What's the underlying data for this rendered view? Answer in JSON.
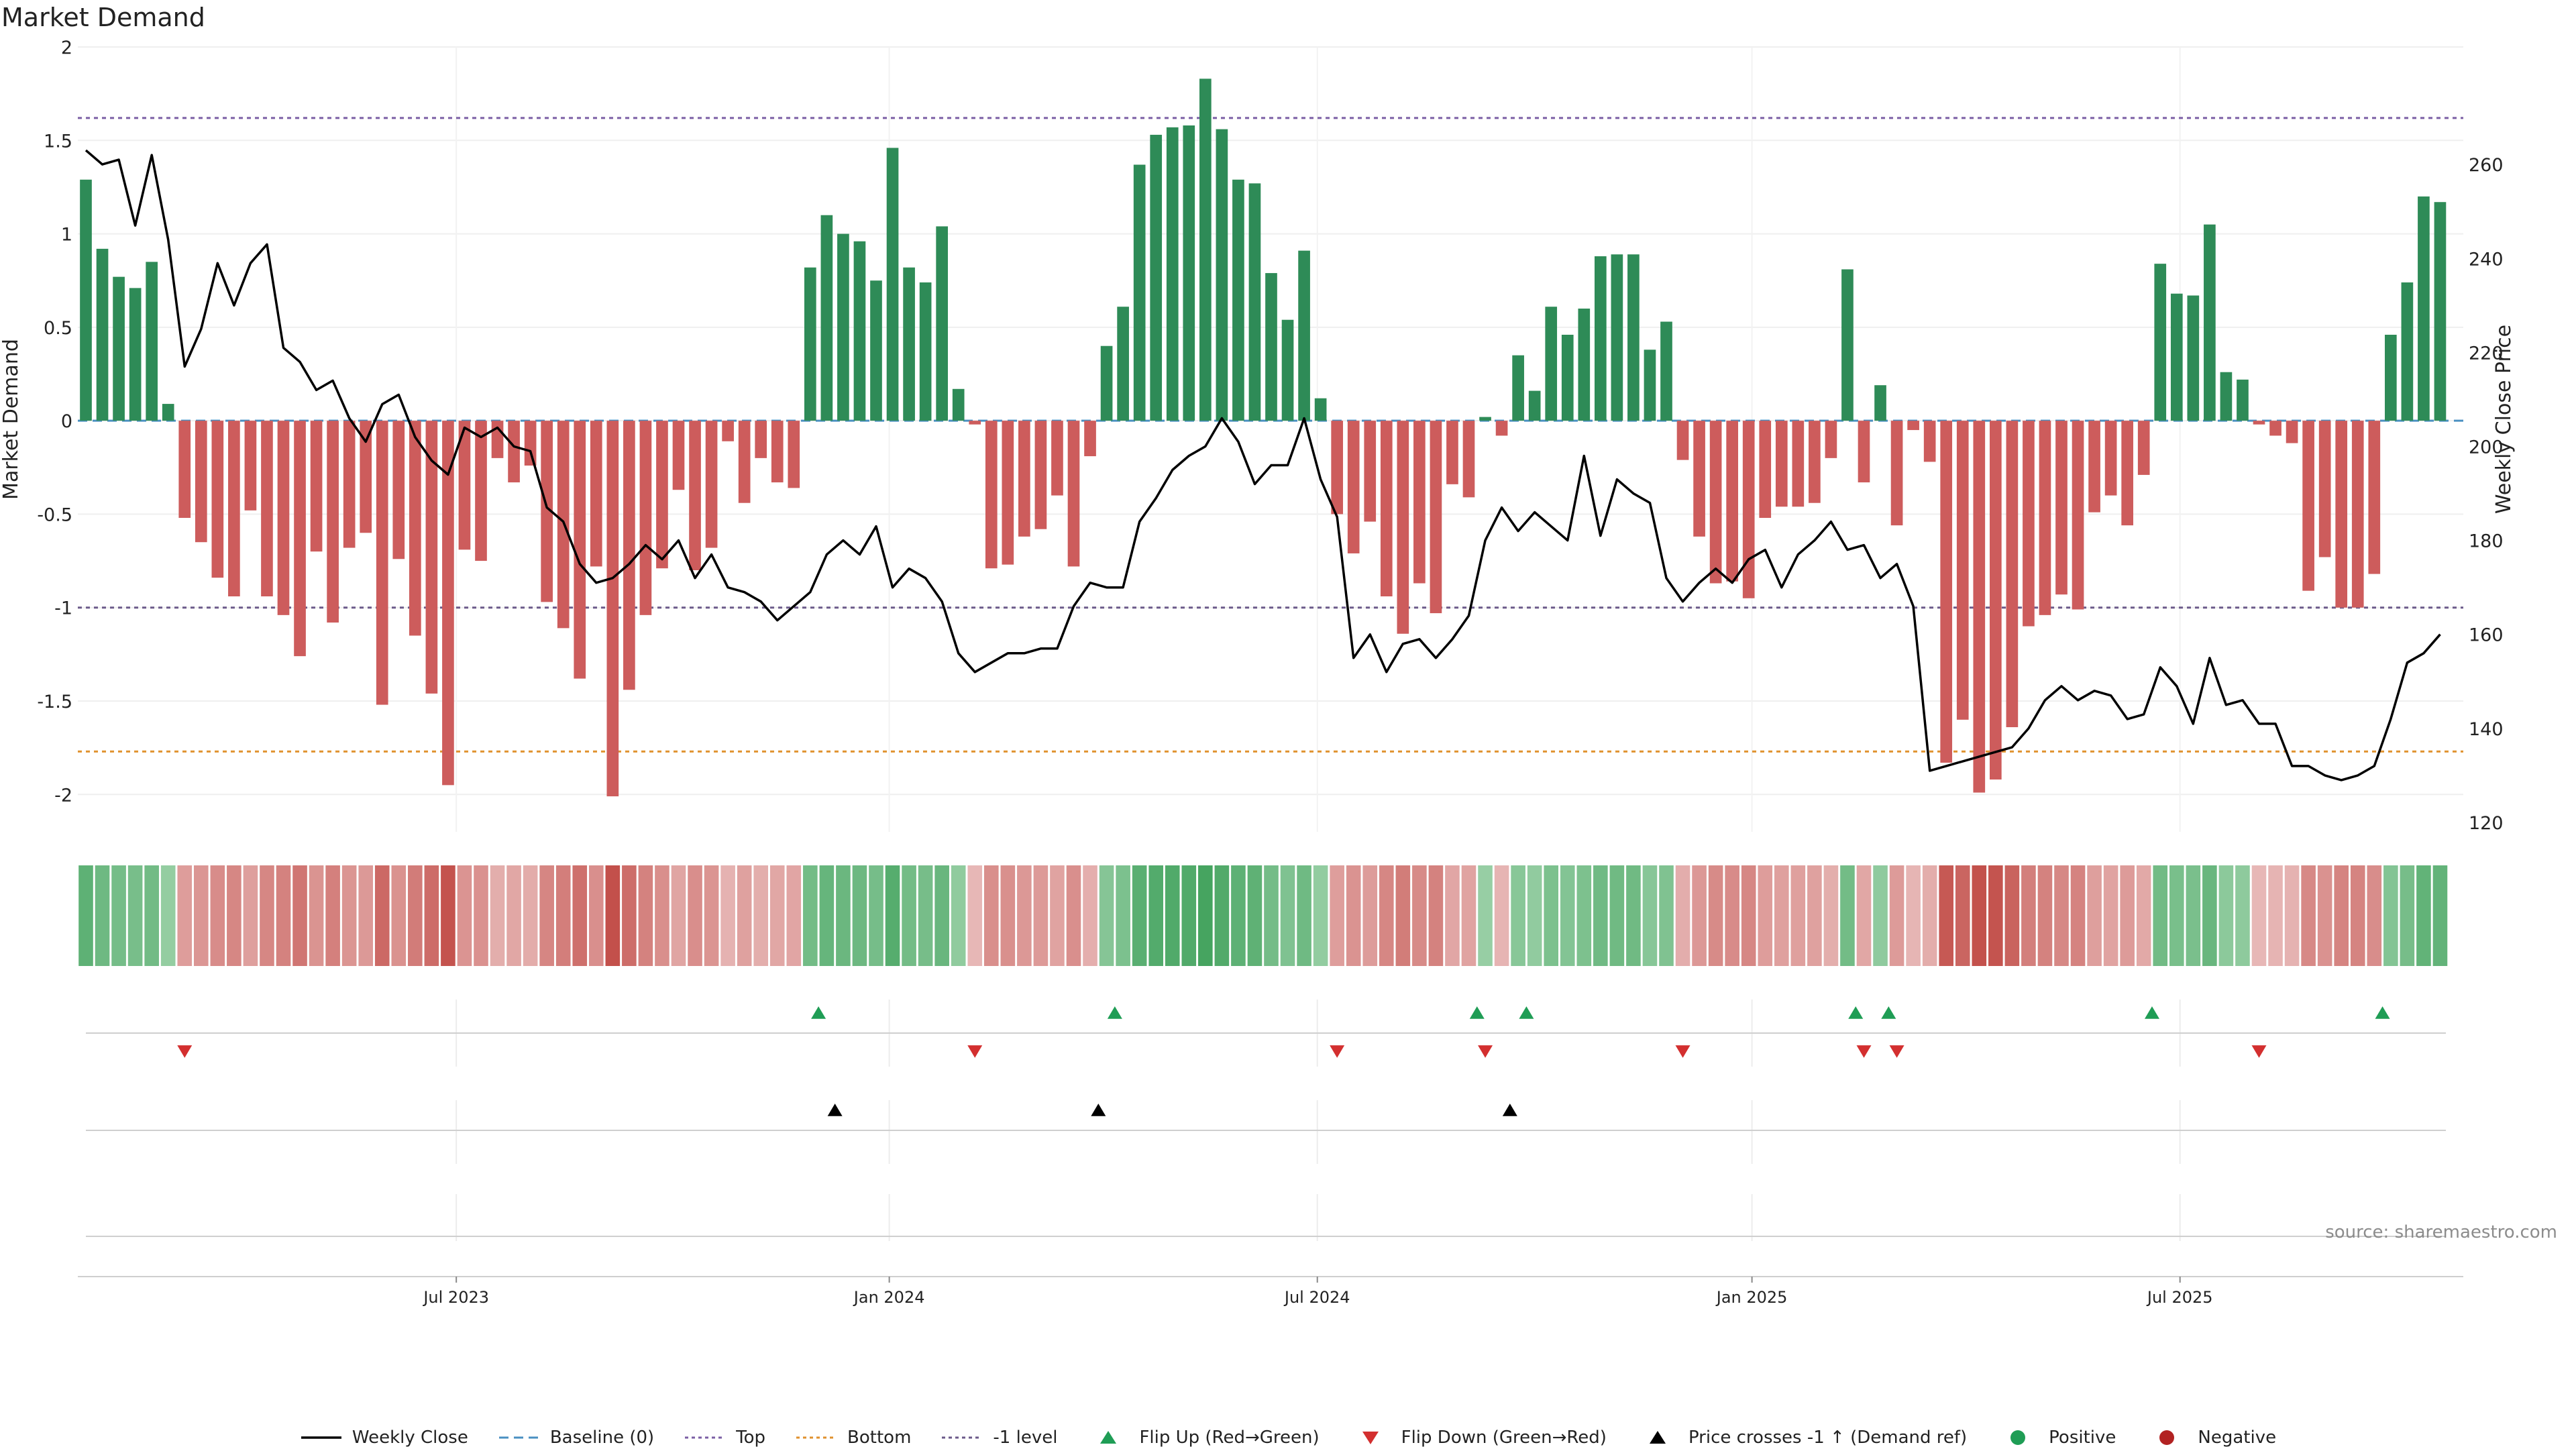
{
  "title": "Market Demand",
  "source_text": "source: sharemaestro.com",
  "colors": {
    "positive_bar": "#2e8b57",
    "negative_bar": "#cd5c5c",
    "price_line": "#000000",
    "top_line": "#7b5fa5",
    "bottom_line": "#e0922f",
    "minus1_line": "#6b5a8a",
    "baseline": "#4a90c2",
    "flip_up": "#1f9d55",
    "flip_down": "#d32f2f",
    "cross_marker": "#000000"
  },
  "legend": [
    {
      "label": "Weekly Close",
      "kind": "line-solid",
      "color": "#000000"
    },
    {
      "label": "Baseline (0)",
      "kind": "line-dash",
      "color": "#4a90c2"
    },
    {
      "label": "Top",
      "kind": "line-dot",
      "color": "#7b5fa5"
    },
    {
      "label": "Bottom",
      "kind": "line-dot",
      "color": "#e0922f"
    },
    {
      "label": "-1 level",
      "kind": "line-dot",
      "color": "#6b5a8a"
    },
    {
      "label": "Flip Up (Red→Green)",
      "kind": "tri-up",
      "color": "#1f9d55"
    },
    {
      "label": "Flip Down (Green→Red)",
      "kind": "tri-down",
      "color": "#d32f2f"
    },
    {
      "label": "Price crosses -1 ↑ (Demand ref)",
      "kind": "tri-up",
      "color": "#000000"
    },
    {
      "label": "Positive",
      "kind": "dot",
      "color": "#1f9d55"
    },
    {
      "label": "Negative",
      "kind": "dot",
      "color": "#b22222"
    }
  ],
  "chart_data": {
    "type": "bar",
    "ylabel": "Market Demand",
    "y2label": "Weekly Close Price",
    "ylim": [
      -2.2,
      2.0
    ],
    "y_ticks": [
      2,
      1.5,
      1,
      0.5,
      0,
      -0.5,
      -1,
      -1.5,
      -2
    ],
    "y2lim": [
      118,
      285
    ],
    "y2_ticks": [
      260,
      240,
      220,
      200,
      180,
      160,
      140,
      120
    ],
    "x_tick_labels": [
      {
        "label": "Jul 2023",
        "week": 22.5
      },
      {
        "label": "Jan 2024",
        "week": 48.8
      },
      {
        "label": "Jul 2024",
        "week": 74.8
      },
      {
        "label": "Jan 2025",
        "week": 101.2
      },
      {
        "label": "Jul 2025",
        "week": 127.2
      }
    ],
    "levels": {
      "top": 1.62,
      "bottom": -1.77,
      "minus1": -1.0,
      "baseline": 0
    },
    "weeks": 145,
    "demand": [
      1.29,
      0.92,
      0.77,
      0.71,
      0.85,
      0.09,
      -0.52,
      -0.65,
      -0.84,
      -0.94,
      -0.48,
      -0.94,
      -1.04,
      -1.26,
      -0.7,
      -1.08,
      -0.68,
      -0.6,
      -1.52,
      -0.74,
      -1.15,
      -1.46,
      -1.95,
      -0.69,
      -0.75,
      -0.2,
      -0.33,
      -0.24,
      -0.97,
      -1.11,
      -1.38,
      -0.78,
      -2.01,
      -1.44,
      -1.04,
      -0.79,
      -0.37,
      -0.8,
      -0.68,
      -0.11,
      -0.44,
      -0.2,
      -0.33,
      -0.36,
      0.82,
      1.1,
      1.0,
      0.96,
      0.75,
      1.46,
      0.82,
      0.74,
      1.04,
      0.17,
      -0.02,
      -0.79,
      -0.77,
      -0.62,
      -0.58,
      -0.4,
      -0.78,
      -0.19,
      0.4,
      0.61,
      1.37,
      1.53,
      1.57,
      1.58,
      1.83,
      1.56,
      1.29,
      1.27,
      0.79,
      0.54,
      0.91,
      0.12,
      -0.5,
      -0.71,
      -0.54,
      -0.94,
      -1.14,
      -0.87,
      -1.03,
      -0.34,
      -0.41,
      0.02,
      -0.08,
      0.35,
      0.16,
      0.61,
      0.46,
      0.6,
      0.88,
      0.89,
      0.89,
      0.38,
      0.53,
      -0.21,
      -0.62,
      -0.87,
      -0.86,
      -0.95,
      -0.52,
      -0.46,
      -0.46,
      -0.44,
      -0.2,
      0.81,
      -0.33,
      0.19,
      -0.56,
      -0.05,
      -0.22,
      -1.83,
      -1.6,
      -1.99,
      -1.92,
      -1.64,
      -1.1,
      -1.04,
      -0.93,
      -1.01,
      -0.49,
      -0.4,
      -0.56,
      -0.29,
      0.84,
      0.68,
      0.67,
      1.05,
      0.26,
      0.22,
      -0.02,
      -0.08,
      -0.12,
      -0.91,
      -0.73,
      -1.0,
      -1.0,
      -0.82,
      0.46,
      0.74,
      1.2,
      1.17
    ],
    "price": [
      263,
      260,
      261,
      247,
      262,
      244,
      217,
      225,
      239,
      230,
      239,
      243,
      221,
      218,
      212,
      214,
      206,
      201,
      209,
      211,
      202,
      197,
      194,
      204,
      202,
      204,
      200,
      199,
      187,
      184,
      175,
      171,
      172,
      175,
      179,
      176,
      180,
      172,
      177,
      170,
      169,
      167,
      163,
      166,
      169,
      177,
      180,
      177,
      183,
      170,
      174,
      172,
      167,
      156,
      152,
      154,
      156,
      156,
      157,
      157,
      166,
      171,
      170,
      170,
      184,
      189,
      195,
      198,
      200,
      206,
      201,
      192,
      196,
      196,
      206,
      193,
      185,
      155,
      160,
      152,
      158,
      159,
      155,
      159,
      164,
      180,
      187,
      182,
      186,
      183,
      180,
      198,
      181,
      193,
      190,
      188,
      172,
      167,
      171,
      174,
      171,
      176,
      178,
      170,
      177,
      180,
      184,
      178,
      179,
      172,
      175,
      166,
      131,
      132,
      133,
      134,
      135,
      136,
      140,
      146,
      149,
      146,
      148,
      147,
      142,
      143,
      153,
      149,
      141,
      155,
      145,
      146,
      141,
      141,
      132,
      132,
      130,
      129,
      130,
      132,
      142,
      154,
      156,
      160
    ],
    "flip_up_weeks": [
      44.5,
      62.5,
      84.5,
      87.5,
      107.5,
      109.5,
      125.5,
      139.5
    ],
    "flip_down_weeks": [
      6,
      54,
      76,
      85,
      97,
      108,
      110,
      132
    ],
    "cross_up_weeks": [
      45.5,
      61.5,
      86.5
    ]
  }
}
